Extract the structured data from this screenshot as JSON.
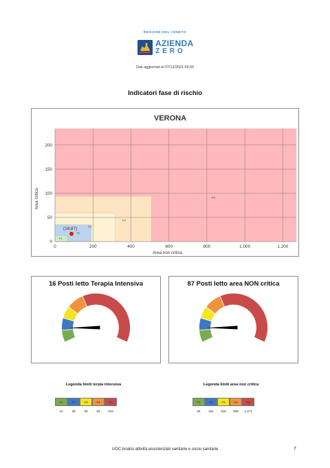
{
  "header": {
    "region_label": "REGIONE DEL VENETO",
    "logo_line1": "AZIENDA",
    "logo_line2": "ZERO",
    "updated_text": "Dati aggiornati al 07/12/2021 09.50"
  },
  "section_title": "Indicatori fase di rischio",
  "chart_data": [
    {
      "type": "scatter",
      "title": "VERONA",
      "xlabel": "Area non critica",
      "ylabel": "Area critica",
      "xlim": [
        0,
        1271
      ],
      "ylim": [
        0,
        234
      ],
      "x_ticks": [
        "0",
        "200",
        "400",
        "600",
        "800",
        "1.000",
        "1.200"
      ],
      "y_ticks": [
        "0",
        "50",
        "100",
        "150",
        "200"
      ],
      "grid": true,
      "zones": [
        {
          "name": "F5",
          "x_max": 1271,
          "y_max": 234,
          "color": "#ffb8bc"
        },
        {
          "name": "F4",
          "x_max": 508,
          "y_max": 94,
          "color": "#fde5c1"
        },
        {
          "name": "F3",
          "x_max": 318,
          "y_max": 59,
          "color": "#fdf3d3"
        },
        {
          "name": "F2",
          "x_max": 191,
          "y_max": 35,
          "color": "#bcd3ec"
        },
        {
          "name": "F1",
          "x_max": 64,
          "y_max": 12,
          "color": "#c9efc4"
        }
      ],
      "points": [
        {
          "x": 87,
          "y": 16,
          "label": "(16;87)",
          "color": "#e01818"
        }
      ]
    }
  ],
  "gauges": [
    {
      "title": "16 Posti letto Terapia Intensiva",
      "value": 16,
      "max": 234,
      "thresholds": [
        12,
        35,
        59,
        94,
        234
      ]
    },
    {
      "title": "87 Posti letto area NON critica",
      "value": 87,
      "max": 1271,
      "thresholds": [
        64,
        191,
        318,
        508,
        1271
      ]
    }
  ],
  "phase_colors": [
    "#7aab4f",
    "#3f79c4",
    "#f2e620",
    "#f0933e",
    "#c94a4a"
  ],
  "legends": [
    {
      "title": "Legenda limiti terpia intensiva",
      "phases": [
        "F1",
        "F2",
        "F3",
        "F4",
        "F5"
      ],
      "values": [
        "12",
        "35",
        "59",
        "94",
        "234"
      ]
    },
    {
      "title": "Legenda limiti area non critica",
      "phases": [
        "F1",
        "F2",
        "F3",
        "F4",
        "F5"
      ],
      "values": [
        "64",
        "191",
        "318",
        "508",
        "1.271"
      ]
    }
  ],
  "footer": {
    "text": "UOC Analisi attività assistenziali sanitarie e socio sanitarie",
    "page": "7"
  }
}
